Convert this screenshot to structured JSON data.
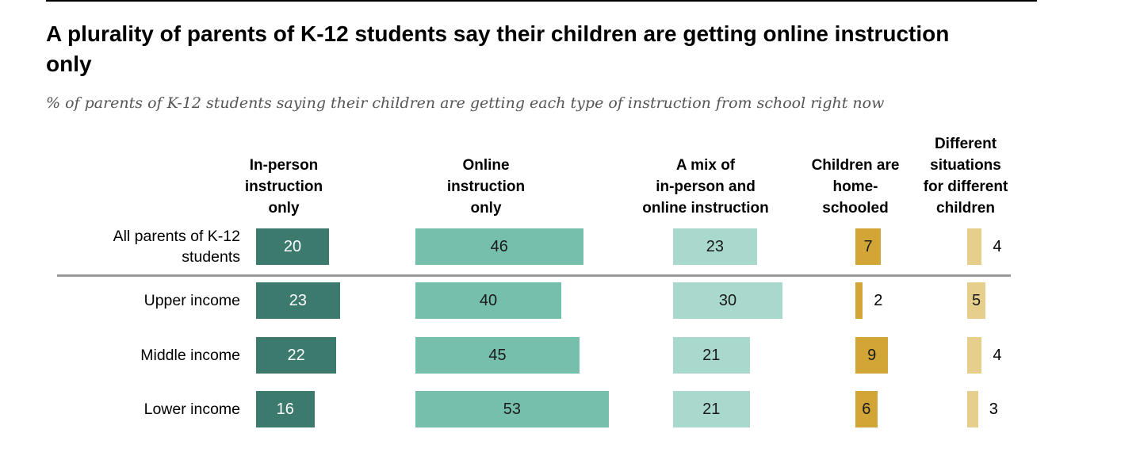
{
  "title": "A plurality of parents of K-12 students say their children are getting online instruction only",
  "subtitle": "% of parents of K-12 students saying their children are getting each type of instruction from school right now",
  "chart_data": {
    "type": "bar",
    "title": "A plurality of parents of K-12 students say their children are getting online instruction only",
    "subtitle": "% of parents of K-12 students saying their children are getting each type of instruction from school right now",
    "categories": [
      "All parents of K-12 students",
      "Upper income",
      "Middle income",
      "Lower income"
    ],
    "series": [
      {
        "name": "In-person instruction only",
        "color": "#3b7a6c",
        "label_color": "#ffffff",
        "values": [
          20,
          23,
          22,
          16
        ]
      },
      {
        "name": "Online instruction only",
        "color": "#76bfad",
        "label_color": "#1a1a1a",
        "values": [
          46,
          40,
          45,
          53
        ]
      },
      {
        "name": "A mix of in-person and online instruction",
        "color": "#a8d9cc",
        "label_color": "#1a1a1a",
        "values": [
          23,
          30,
          21,
          21
        ]
      },
      {
        "name": "Children are home-schooled",
        "color": "#d1a637",
        "label_color": "#1a1a1a",
        "values": [
          7,
          2,
          9,
          6
        ]
      },
      {
        "name": "Different situations for different children",
        "color": "#e6cf8c",
        "label_color": "#1a1a1a",
        "values": [
          4,
          5,
          4,
          3
        ]
      }
    ],
    "column_headers": [
      [
        "In-person",
        "instruction",
        "only"
      ],
      [
        "Online",
        "instruction",
        "only"
      ],
      [
        "A mix of",
        "in-person and",
        "online instruction"
      ],
      [
        "Children are",
        "home-",
        "schooled"
      ],
      [
        "Different",
        "situations",
        "for different",
        "children"
      ]
    ],
    "category_lines": [
      [
        "All parents of K-12",
        "students"
      ],
      [
        "Upper income"
      ],
      [
        "Middle income"
      ],
      [
        "Lower income"
      ]
    ],
    "grid": false,
    "legend": "none"
  }
}
